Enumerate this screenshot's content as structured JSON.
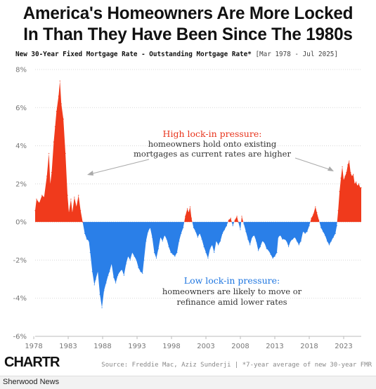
{
  "header": {
    "title_line1": "America's Homeowners Are More Locked",
    "title_line2": "In Than They Have Been Since The 1980s",
    "subtitle": "New 30-Year Fixed Mortgage Rate - Outstanding Mortgage Rate*",
    "subtitle_range": "[Mar 1978 - Jul 2025]"
  },
  "colors": {
    "positive": "#f03a1c",
    "negative": "#2a7fe8",
    "annotation_red": "#e8341c",
    "annotation_blue": "#1f76e0",
    "arrow": "#aaaaaa"
  },
  "annotations": {
    "high": {
      "title": "High lock-in pressure:",
      "line1": "homeowners hold onto existing",
      "line2": "mortgages as current rates are higher"
    },
    "low": {
      "title": "Low lock-in pressure:",
      "line1": "homeowners are likely to move or",
      "line2": "refinance amid lower rates"
    }
  },
  "footer": {
    "logo": "CHARTR",
    "source": "Source: Freddie Mac, Aziz Sunderji | *7-year average of new 30-year FMR",
    "brand": "Sherwood News"
  },
  "chart_data": {
    "type": "area",
    "ylim": [
      -6,
      8
    ],
    "xlim": [
      1978.2,
      2025.55
    ],
    "y_ticks": [
      "8%",
      "6%",
      "4%",
      "2%",
      "0%",
      "-2%",
      "-4%",
      "-6%"
    ],
    "y_tick_values": [
      8,
      6,
      4,
      2,
      0,
      -2,
      -4,
      -6
    ],
    "x_ticks": [
      "1978",
      "1983",
      "1988",
      "1993",
      "1998",
      "2003",
      "2008",
      "2013",
      "2018",
      "2023"
    ],
    "x_tick_values": [
      1978,
      1983,
      1988,
      1993,
      1998,
      2003,
      2008,
      2013,
      2018,
      2023
    ],
    "series": [
      {
        "points": [
          [
            1978.2,
            0.6
          ],
          [
            1978.4,
            1.2
          ],
          [
            1978.8,
            1.0
          ],
          [
            1979.2,
            1.4
          ],
          [
            1979.5,
            1.3
          ],
          [
            1979.9,
            2.4
          ],
          [
            1980.2,
            3.6
          ],
          [
            1980.4,
            2.0
          ],
          [
            1980.6,
            2.6
          ],
          [
            1980.9,
            4.2
          ],
          [
            1981.1,
            5.0
          ],
          [
            1981.3,
            5.8
          ],
          [
            1981.6,
            6.6
          ],
          [
            1981.8,
            7.4
          ],
          [
            1982.0,
            6.2
          ],
          [
            1982.3,
            5.4
          ],
          [
            1982.6,
            3.6
          ],
          [
            1982.9,
            1.4
          ],
          [
            1983.1,
            0.5
          ],
          [
            1983.4,
            1.2
          ],
          [
            1983.6,
            0.5
          ],
          [
            1983.9,
            1.3
          ],
          [
            1984.2,
            0.8
          ],
          [
            1984.5,
            1.4
          ],
          [
            1984.8,
            0.6
          ],
          [
            1985.1,
            0.0
          ],
          [
            1985.4,
            -0.6
          ],
          [
            1985.7,
            -0.9
          ],
          [
            1986.0,
            -1.0
          ],
          [
            1986.2,
            -1.6
          ],
          [
            1986.5,
            -2.6
          ],
          [
            1986.8,
            -3.3
          ],
          [
            1987.0,
            -3.0
          ],
          [
            1987.3,
            -2.6
          ],
          [
            1987.6,
            -3.8
          ],
          [
            1987.9,
            -4.5
          ],
          [
            1988.2,
            -3.6
          ],
          [
            1988.5,
            -3.2
          ],
          [
            1988.8,
            -2.8
          ],
          [
            1989.0,
            -2.6
          ],
          [
            1989.3,
            -2.2
          ],
          [
            1989.6,
            -2.9
          ],
          [
            1989.9,
            -3.2
          ],
          [
            1990.2,
            -2.8
          ],
          [
            1990.5,
            -2.6
          ],
          [
            1990.8,
            -2.5
          ],
          [
            1991.1,
            -2.8
          ],
          [
            1991.4,
            -2.2
          ],
          [
            1991.7,
            -1.8
          ],
          [
            1992.0,
            -2.0
          ],
          [
            1992.3,
            -1.6
          ],
          [
            1992.6,
            -1.8
          ],
          [
            1992.9,
            -2.0
          ],
          [
            1993.2,
            -2.4
          ],
          [
            1993.5,
            -2.6
          ],
          [
            1993.8,
            -2.7
          ],
          [
            1994.0,
            -2.0
          ],
          [
            1994.3,
            -1.0
          ],
          [
            1994.6,
            -0.5
          ],
          [
            1994.9,
            -0.3
          ],
          [
            1995.2,
            -0.8
          ],
          [
            1995.5,
            -1.6
          ],
          [
            1995.8,
            -1.9
          ],
          [
            1996.1,
            -1.4
          ],
          [
            1996.4,
            -0.8
          ],
          [
            1996.7,
            -1.0
          ],
          [
            1997.0,
            -0.7
          ],
          [
            1997.3,
            -0.9
          ],
          [
            1997.6,
            -1.3
          ],
          [
            1997.9,
            -1.6
          ],
          [
            1998.2,
            -1.7
          ],
          [
            1998.5,
            -1.8
          ],
          [
            1998.8,
            -1.6
          ],
          [
            1999.1,
            -1.0
          ],
          [
            1999.4,
            -0.6
          ],
          [
            1999.7,
            -0.3
          ],
          [
            2000.0,
            0.3
          ],
          [
            2000.3,
            0.7
          ],
          [
            2000.5,
            0.5
          ],
          [
            2000.7,
            0.8
          ],
          [
            2000.9,
            0.2
          ],
          [
            2001.2,
            -0.3
          ],
          [
            2001.5,
            -0.5
          ],
          [
            2001.8,
            -0.8
          ],
          [
            2002.1,
            -0.6
          ],
          [
            2002.4,
            -0.9
          ],
          [
            2002.7,
            -1.3
          ],
          [
            2003.0,
            -1.6
          ],
          [
            2003.3,
            -1.9
          ],
          [
            2003.6,
            -1.4
          ],
          [
            2003.9,
            -1.2
          ],
          [
            2004.2,
            -1.6
          ],
          [
            2004.5,
            -1.0
          ],
          [
            2004.8,
            -1.2
          ],
          [
            2005.1,
            -1.0
          ],
          [
            2005.4,
            -0.6
          ],
          [
            2005.7,
            -0.4
          ],
          [
            2006.0,
            -0.2
          ],
          [
            2006.3,
            0.1
          ],
          [
            2006.6,
            0.2
          ],
          [
            2006.9,
            -0.2
          ],
          [
            2007.2,
            0.1
          ],
          [
            2007.5,
            0.3
          ],
          [
            2007.7,
            0.0
          ],
          [
            2008.0,
            -0.4
          ],
          [
            2008.2,
            0.3
          ],
          [
            2008.5,
            -0.1
          ],
          [
            2008.8,
            -0.5
          ],
          [
            2009.1,
            -0.9
          ],
          [
            2009.4,
            -1.2
          ],
          [
            2009.7,
            -0.8
          ],
          [
            2010.0,
            -0.7
          ],
          [
            2010.3,
            -1.0
          ],
          [
            2010.6,
            -1.5
          ],
          [
            2010.9,
            -1.3
          ],
          [
            2011.2,
            -1.0
          ],
          [
            2011.5,
            -1.1
          ],
          [
            2011.8,
            -1.4
          ],
          [
            2012.1,
            -1.5
          ],
          [
            2012.4,
            -1.7
          ],
          [
            2012.7,
            -1.9
          ],
          [
            2013.0,
            -1.8
          ],
          [
            2013.3,
            -1.6
          ],
          [
            2013.5,
            -0.8
          ],
          [
            2013.8,
            -0.7
          ],
          [
            2014.1,
            -0.9
          ],
          [
            2014.4,
            -0.9
          ],
          [
            2014.7,
            -1.0
          ],
          [
            2015.0,
            -1.3
          ],
          [
            2015.3,
            -1.0
          ],
          [
            2015.6,
            -0.9
          ],
          [
            2015.9,
            -0.8
          ],
          [
            2016.2,
            -1.0
          ],
          [
            2016.5,
            -1.2
          ],
          [
            2016.8,
            -1.0
          ],
          [
            2017.1,
            -0.5
          ],
          [
            2017.4,
            -0.6
          ],
          [
            2017.7,
            -0.5
          ],
          [
            2018.0,
            -0.2
          ],
          [
            2018.3,
            0.2
          ],
          [
            2018.6,
            0.4
          ],
          [
            2018.9,
            0.8
          ],
          [
            2019.1,
            0.5
          ],
          [
            2019.4,
            0.1
          ],
          [
            2019.7,
            -0.3
          ],
          [
            2020.0,
            -0.5
          ],
          [
            2020.3,
            -0.7
          ],
          [
            2020.6,
            -1.0
          ],
          [
            2020.9,
            -1.2
          ],
          [
            2021.2,
            -1.0
          ],
          [
            2021.5,
            -0.8
          ],
          [
            2021.8,
            -0.6
          ],
          [
            2022.0,
            -0.2
          ],
          [
            2022.2,
            0.6
          ],
          [
            2022.4,
            1.6
          ],
          [
            2022.6,
            2.3
          ],
          [
            2022.8,
            2.9
          ],
          [
            2023.0,
            2.2
          ],
          [
            2023.2,
            2.4
          ],
          [
            2023.4,
            2.6
          ],
          [
            2023.6,
            3.0
          ],
          [
            2023.8,
            3.2
          ],
          [
            2024.0,
            2.6
          ],
          [
            2024.2,
            2.4
          ],
          [
            2024.4,
            2.5
          ],
          [
            2024.6,
            2.0
          ],
          [
            2024.8,
            2.1
          ],
          [
            2025.0,
            1.9
          ],
          [
            2025.2,
            2.0
          ],
          [
            2025.4,
            1.8
          ],
          [
            2025.55,
            1.8
          ]
        ]
      }
    ]
  }
}
